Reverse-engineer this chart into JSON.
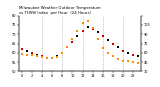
{
  "title_line1": "Milwaukee Weather Outdoor Temperature",
  "title_line2": "vs THSW Index  per Hour  (24 Hours)",
  "hours": [
    0,
    1,
    2,
    3,
    4,
    5,
    6,
    7,
    8,
    9,
    10,
    11,
    12,
    13,
    14,
    15,
    16,
    17,
    18,
    19,
    20,
    21,
    22,
    23
  ],
  "outdoor_temp": [
    62,
    61,
    60,
    59,
    58,
    57,
    57,
    58,
    60,
    63,
    66,
    69,
    72,
    74,
    73,
    71,
    69,
    67,
    65,
    63,
    61,
    60,
    59,
    58
  ],
  "thsw": [
    58,
    57,
    56,
    54,
    53,
    52,
    51,
    53,
    60,
    70,
    82,
    95,
    108,
    112,
    100,
    82,
    68,
    60,
    54,
    50,
    47,
    46,
    45,
    44
  ],
  "thsw_color": "#FF8C00",
  "temp_color_main": "#CC0000",
  "temp_color_alt": "#000000",
  "dot_color_orange": "#FFA500",
  "bg_color": "#ffffff",
  "grid_color": "#999999",
  "ylim_left": [
    50,
    80
  ],
  "ylim_right": [
    30,
    120
  ],
  "yticks_left": [
    50,
    55,
    60,
    65,
    70,
    75,
    80
  ],
  "ytick_labels_left": [
    "50",
    "55",
    "60",
    "65",
    "70",
    "75",
    "80"
  ],
  "yticks_right": [
    30,
    45,
    60,
    75,
    90,
    105,
    120
  ],
  "ytick_labels_right": [
    "30",
    "45",
    "60",
    "75",
    "90",
    "105",
    ""
  ],
  "vgrid_hours": [
    4,
    8,
    12,
    16,
    20
  ],
  "marker_size": 1.8,
  "xtick_step": 2
}
